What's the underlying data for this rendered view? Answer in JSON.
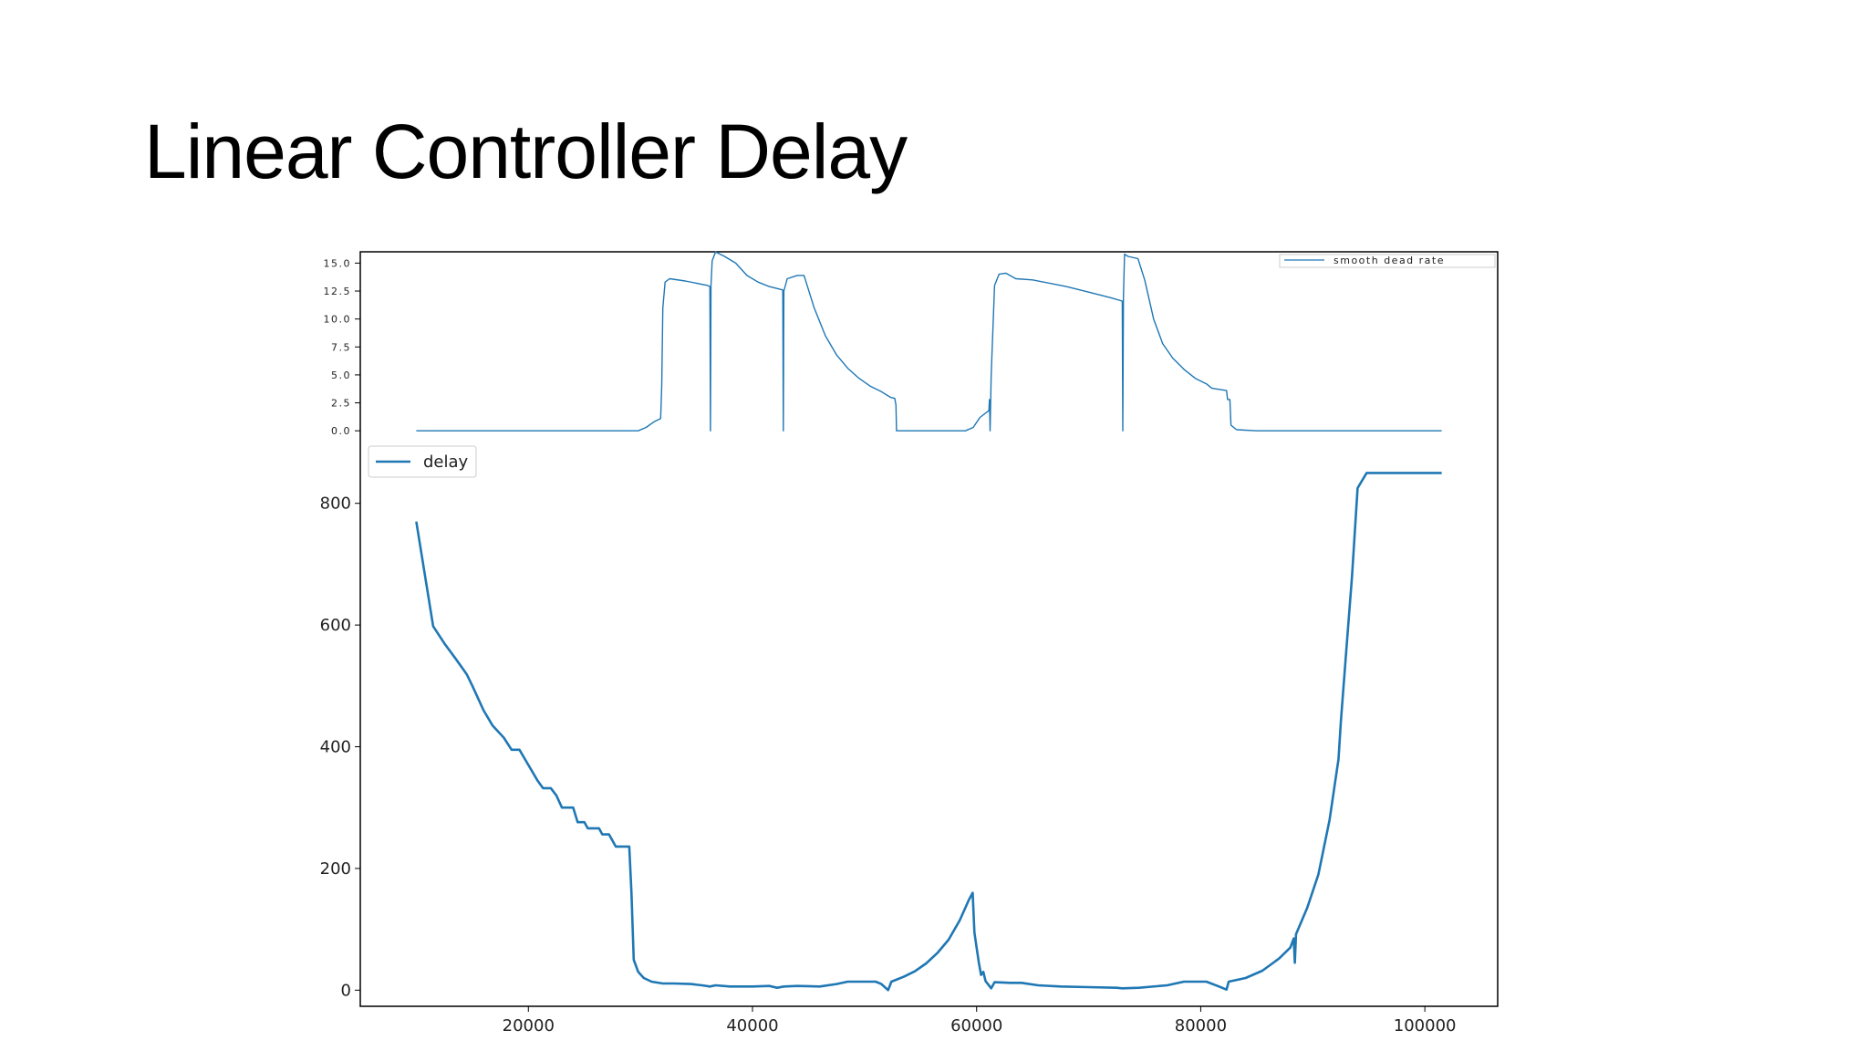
{
  "slide": {
    "title": "Linear Controller Delay"
  },
  "colors": {
    "series": "#1f77b4",
    "axes": "#000000",
    "background": "#ffffff"
  },
  "chart_data": [
    {
      "type": "line",
      "position": "top",
      "legend": {
        "placement": "upper-right",
        "label": "smooth dead rate"
      },
      "xlim": [
        5000,
        106500
      ],
      "ylim": [
        -0.8,
        16.5
      ],
      "y_ticks": [
        "0.0",
        "2.5",
        "5.0",
        "7.5",
        "10.0",
        "12.5",
        "15.0"
      ],
      "series": [
        {
          "name": "smooth dead rate",
          "points": [
            [
              10000,
              0.0
            ],
            [
              29800,
              0.0
            ],
            [
              30500,
              0.3
            ],
            [
              31200,
              0.8
            ],
            [
              31800,
              1.1
            ],
            [
              31900,
              4.0
            ],
            [
              32000,
              11.0
            ],
            [
              32200,
              13.3
            ],
            [
              32600,
              13.6
            ],
            [
              34000,
              13.4
            ],
            [
              36000,
              13.0
            ],
            [
              36200,
              12.9
            ],
            [
              36250,
              0.0
            ],
            [
              36300,
              13.0
            ],
            [
              36400,
              15.2
            ],
            [
              36700,
              16.0
            ],
            [
              37500,
              15.6
            ],
            [
              38500,
              15.0
            ],
            [
              39500,
              13.9
            ],
            [
              40500,
              13.3
            ],
            [
              41500,
              12.9
            ],
            [
              42700,
              12.6
            ],
            [
              42750,
              0.0
            ],
            [
              42800,
              12.5
            ],
            [
              43100,
              13.6
            ],
            [
              44000,
              13.9
            ],
            [
              44600,
              13.9
            ],
            [
              45500,
              11.0
            ],
            [
              46500,
              8.5
            ],
            [
              47500,
              6.8
            ],
            [
              48500,
              5.6
            ],
            [
              49500,
              4.7
            ],
            [
              50500,
              4.0
            ],
            [
              51500,
              3.5
            ],
            [
              52300,
              3.0
            ],
            [
              52700,
              2.9
            ],
            [
              52800,
              2.3
            ],
            [
              52850,
              0.0
            ],
            [
              59000,
              0.0
            ],
            [
              59700,
              0.3
            ],
            [
              60300,
              1.2
            ],
            [
              61100,
              1.8
            ],
            [
              61150,
              2.8
            ],
            [
              61200,
              0.0
            ],
            [
              61300,
              5.0
            ],
            [
              61600,
              13.0
            ],
            [
              62000,
              14.0
            ],
            [
              62600,
              14.1
            ],
            [
              63500,
              13.6
            ],
            [
              65000,
              13.5
            ],
            [
              68000,
              12.9
            ],
            [
              70000,
              12.4
            ],
            [
              72000,
              11.9
            ],
            [
              73000,
              11.6
            ],
            [
              73050,
              0.0
            ],
            [
              73100,
              12.0
            ],
            [
              73200,
              15.8
            ],
            [
              73500,
              15.6
            ],
            [
              74400,
              15.4
            ],
            [
              75000,
              13.5
            ],
            [
              75800,
              10.0
            ],
            [
              76600,
              7.8
            ],
            [
              77500,
              6.5
            ],
            [
              78500,
              5.5
            ],
            [
              79500,
              4.7
            ],
            [
              80500,
              4.2
            ],
            [
              81000,
              3.8
            ],
            [
              82300,
              3.6
            ],
            [
              82400,
              2.8
            ],
            [
              82600,
              2.8
            ],
            [
              82700,
              0.5
            ],
            [
              83200,
              0.1
            ],
            [
              85000,
              0.0
            ],
            [
              101500,
              0.0
            ]
          ]
        }
      ]
    },
    {
      "type": "line",
      "position": "bottom",
      "legend": {
        "placement": "upper-left",
        "label": "delay"
      },
      "xlim": [
        5000,
        106500
      ],
      "ylim": [
        -40,
        900
      ],
      "x_ticks": [
        "20000",
        "40000",
        "60000",
        "80000",
        "100000"
      ],
      "y_ticks": [
        "0",
        "200",
        "400",
        "600",
        "800"
      ],
      "series": [
        {
          "name": "delay",
          "points": [
            [
              10000,
              770
            ],
            [
              11500,
              598
            ],
            [
              12500,
              570
            ],
            [
              13500,
              545
            ],
            [
              14500,
              519
            ],
            [
              15000,
              500
            ],
            [
              16000,
              460
            ],
            [
              16800,
              435
            ],
            [
              17800,
              415
            ],
            [
              18500,
              395
            ],
            [
              19200,
              395
            ],
            [
              20000,
              370
            ],
            [
              20800,
              345
            ],
            [
              21300,
              332
            ],
            [
              22000,
              332
            ],
            [
              22500,
              320
            ],
            [
              23000,
              300
            ],
            [
              24000,
              300
            ],
            [
              24400,
              276
            ],
            [
              25000,
              276
            ],
            [
              25300,
              266
            ],
            [
              26300,
              266
            ],
            [
              26600,
              256
            ],
            [
              27200,
              256
            ],
            [
              27800,
              236
            ],
            [
              29000,
              236
            ],
            [
              29200,
              160
            ],
            [
              29400,
              50
            ],
            [
              29800,
              30
            ],
            [
              30300,
              20
            ],
            [
              31000,
              14
            ],
            [
              32000,
              11
            ],
            [
              33000,
              11
            ],
            [
              34500,
              10
            ],
            [
              35500,
              8
            ],
            [
              36200,
              6
            ],
            [
              36700,
              8
            ],
            [
              38000,
              6
            ],
            [
              40000,
              6
            ],
            [
              41500,
              7
            ],
            [
              42200,
              4
            ],
            [
              42800,
              6
            ],
            [
              44000,
              7
            ],
            [
              46000,
              6
            ],
            [
              47500,
              10
            ],
            [
              48500,
              14
            ],
            [
              50000,
              14
            ],
            [
              51000,
              14
            ],
            [
              51500,
              10
            ],
            [
              52100,
              0
            ],
            [
              52400,
              14
            ],
            [
              53500,
              22
            ],
            [
              54500,
              31
            ],
            [
              55500,
              44
            ],
            [
              56500,
              61
            ],
            [
              57500,
              83
            ],
            [
              58500,
              115
            ],
            [
              59300,
              148
            ],
            [
              59650,
              160
            ],
            [
              59800,
              95
            ],
            [
              60000,
              70
            ],
            [
              60200,
              45
            ],
            [
              60400,
              25
            ],
            [
              60600,
              30
            ],
            [
              60800,
              15
            ],
            [
              61300,
              3
            ],
            [
              61600,
              13
            ],
            [
              63000,
              12
            ],
            [
              64000,
              12
            ],
            [
              65500,
              8
            ],
            [
              67500,
              6
            ],
            [
              70000,
              5
            ],
            [
              72500,
              4
            ],
            [
              73000,
              3
            ],
            [
              74500,
              4
            ],
            [
              77000,
              8
            ],
            [
              78500,
              14
            ],
            [
              80500,
              14
            ],
            [
              81500,
              7
            ],
            [
              82300,
              1
            ],
            [
              82500,
              14
            ],
            [
              84000,
              20
            ],
            [
              85500,
              32
            ],
            [
              87000,
              52
            ],
            [
              88000,
              70
            ],
            [
              88300,
              85
            ],
            [
              88400,
              45
            ],
            [
              88500,
              92
            ],
            [
              89500,
              135
            ],
            [
              90500,
              190
            ],
            [
              91500,
              280
            ],
            [
              92300,
              380
            ],
            [
              92500,
              440
            ],
            [
              93000,
              560
            ],
            [
              93500,
              680
            ],
            [
              94000,
              825
            ],
            [
              94800,
              850
            ],
            [
              101500,
              850
            ]
          ]
        }
      ]
    }
  ]
}
